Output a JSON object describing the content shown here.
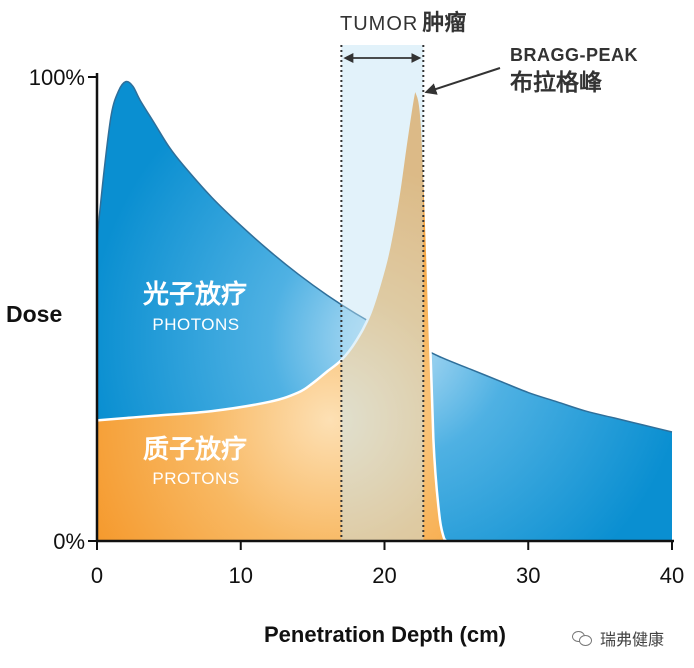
{
  "chart_data": {
    "type": "area",
    "ylabel": "Dose",
    "xlabel": "Penetration Depth (cm)",
    "xlim": [
      0,
      40
    ],
    "ylim": [
      0,
      100
    ],
    "x_ticks": [
      0,
      10,
      20,
      30,
      40
    ],
    "y_ticks": [
      {
        "value": 0,
        "label": "0%"
      },
      {
        "value": 100,
        "label": "100%"
      }
    ],
    "series": [
      {
        "name": "光子放疗",
        "name_en": "PHOTONS",
        "color": "#0a8fd1",
        "x": [
          0,
          0.5,
          1,
          1.5,
          2,
          2.5,
          3,
          4,
          5,
          6,
          8,
          10,
          12,
          14,
          16,
          18,
          20,
          22,
          24,
          26,
          28,
          30,
          32,
          34,
          36,
          38,
          40
        ],
        "y": [
          65,
          80,
          92,
          97,
          99,
          98,
          95,
          90,
          85,
          81,
          74,
          68,
          62.5,
          57.5,
          53,
          49,
          45.5,
          42.5,
          39.5,
          37,
          34.5,
          32,
          30,
          28,
          26.5,
          25,
          23.5
        ]
      },
      {
        "name": "质子放疗",
        "name_en": "PROTONS",
        "color": "#f5a03a",
        "x": [
          0,
          4,
          8,
          12,
          14,
          15,
          16,
          17,
          18,
          19,
          20,
          20.5,
          21,
          21.5,
          22,
          22.2,
          22.6,
          23,
          23.4,
          23.8,
          24.1,
          24.3
        ],
        "y": [
          26,
          27,
          28,
          30,
          32,
          34,
          36.5,
          39,
          43,
          49,
          59,
          66,
          75,
          86,
          96,
          97,
          90,
          60,
          22,
          6,
          1,
          0
        ]
      }
    ],
    "annotations": [
      {
        "label": "TUMOR",
        "label_cn": "肿瘤",
        "x_start": 17,
        "x_end": 22.7
      },
      {
        "label": "BRAGG-PEAK",
        "label_cn": "布拉格峰",
        "x": 22.2,
        "y": 97
      }
    ]
  },
  "watermark": {
    "text": "瑞弗健康",
    "icon": "wechat-icon"
  }
}
